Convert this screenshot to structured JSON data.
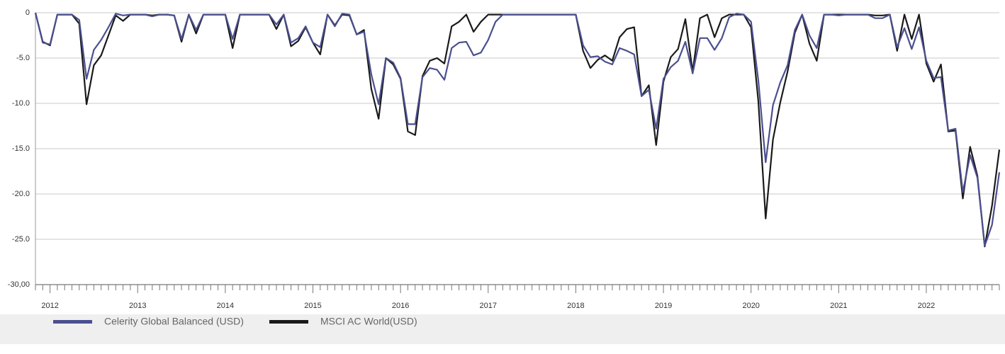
{
  "chart_data": {
    "type": "line",
    "categories": [
      null,
      null,
      "2012",
      null,
      null,
      null,
      null,
      null,
      null,
      null,
      null,
      null,
      null,
      null,
      "2013",
      null,
      null,
      null,
      null,
      null,
      null,
      null,
      null,
      null,
      null,
      null,
      "2014",
      null,
      null,
      null,
      null,
      null,
      null,
      null,
      null,
      null,
      null,
      null,
      "2015",
      null,
      null,
      null,
      null,
      null,
      null,
      null,
      null,
      null,
      null,
      null,
      "2016",
      null,
      null,
      null,
      null,
      null,
      null,
      null,
      null,
      null,
      null,
      null,
      "2017",
      null,
      null,
      null,
      null,
      null,
      null,
      null,
      null,
      null,
      null,
      null,
      "2018",
      null,
      null,
      null,
      null,
      null,
      null,
      null,
      null,
      null,
      null,
      null,
      "2019",
      null,
      null,
      null,
      null,
      null,
      null,
      null,
      null,
      null,
      null,
      null,
      "2020",
      null,
      null,
      null,
      null,
      null,
      null,
      null,
      null,
      null,
      null,
      null,
      "2021",
      null,
      null,
      null,
      null,
      null,
      null,
      null,
      null,
      null,
      null,
      null,
      "2022",
      null,
      null,
      null,
      null,
      null,
      null,
      null,
      null,
      null,
      null
    ],
    "series": [
      {
        "name": "Celerity Global Balanced (USD)",
        "color": "#4a4f8f",
        "values": [
          0,
          -3.3,
          -3.5,
          -0.2,
          -0.2,
          -0.2,
          -0.8,
          -7.3,
          -4.1,
          -3.0,
          -1.6,
          -0.1,
          -0.3,
          -0.2,
          -0.2,
          -0.2,
          -0.4,
          -0.2,
          -0.2,
          -0.3,
          -2.9,
          -0.2,
          -1.9,
          -0.2,
          -0.2,
          -0.2,
          -0.2,
          -2.9,
          -0.2,
          -0.2,
          -0.2,
          -0.2,
          -0.2,
          -1.3,
          -0.2,
          -3.3,
          -2.8,
          -1.5,
          -3.3,
          -3.8,
          -0.2,
          -1.5,
          -0.1,
          -0.2,
          -2.4,
          -2.1,
          -6.8,
          -10.1,
          -5.0,
          -5.5,
          -7.2,
          -12.3,
          -12.3,
          -7.1,
          -6.1,
          -6.3,
          -7.4,
          -3.9,
          -3.3,
          -3.2,
          -4.7,
          -4.4,
          -3.0,
          -1.0,
          -0.2,
          -0.2,
          -0.2,
          -0.2,
          -0.2,
          -0.2,
          -0.2,
          -0.2,
          -0.2,
          -0.2,
          -0.2,
          -3.6,
          -4.9,
          -4.8,
          -5.4,
          -5.7,
          -3.9,
          -4.2,
          -4.6,
          -9.2,
          -8.5,
          -12.8,
          -7.3,
          -6.0,
          -5.3,
          -3.2,
          -6.7,
          -2.8,
          -2.8,
          -4.1,
          -2.8,
          -0.5,
          -0.1,
          -0.2,
          -1.0,
          -7.5,
          -16.5,
          -10.2,
          -7.7,
          -5.8,
          -1.9,
          -0.2,
          -2.5,
          -3.9,
          -0.2,
          -0.2,
          -0.3,
          -0.2,
          -0.2,
          -0.2,
          -0.2,
          -0.6,
          -0.6,
          -0.2,
          -3.8,
          -1.7,
          -4.0,
          -1.6,
          -5.3,
          -7.2,
          -7.1,
          -13.0,
          -12.8,
          -19.8,
          -15.7,
          -18.2,
          -25.7,
          -23.4,
          -17.6
        ]
      },
      {
        "name": "MSCI AC World(USD)",
        "color": "#1a1a1a",
        "values": [
          0,
          -3.2,
          -3.6,
          -0.2,
          -0.2,
          -0.2,
          -1.2,
          -10.1,
          -5.8,
          -4.7,
          -2.5,
          -0.3,
          -0.9,
          -0.2,
          -0.2,
          -0.2,
          -0.3,
          -0.2,
          -0.2,
          -0.3,
          -3.2,
          -0.2,
          -2.3,
          -0.2,
          -0.2,
          -0.2,
          -0.2,
          -3.9,
          -0.2,
          -0.2,
          -0.2,
          -0.2,
          -0.2,
          -1.8,
          -0.2,
          -3.7,
          -3.1,
          -1.6,
          -3.3,
          -4.6,
          -0.2,
          -1.4,
          -0.2,
          -0.3,
          -2.4,
          -1.9,
          -8.4,
          -11.7,
          -5.0,
          -5.7,
          -7.3,
          -13.1,
          -13.5,
          -7.0,
          -5.3,
          -5.0,
          -5.6,
          -1.5,
          -1.0,
          -0.2,
          -2.1,
          -1.0,
          -0.2,
          -0.2,
          -0.2,
          -0.2,
          -0.2,
          -0.2,
          -0.2,
          -0.2,
          -0.2,
          -0.2,
          -0.2,
          -0.2,
          -0.2,
          -4.2,
          -6.1,
          -5.2,
          -4.7,
          -5.3,
          -2.7,
          -1.8,
          -1.6,
          -9.2,
          -8.0,
          -14.6,
          -7.6,
          -4.9,
          -4.0,
          -0.7,
          -6.5,
          -0.6,
          -0.2,
          -2.7,
          -0.6,
          -0.2,
          -0.2,
          -0.2,
          -1.6,
          -9.8,
          -22.7,
          -14.0,
          -9.9,
          -6.5,
          -2.2,
          -0.2,
          -3.4,
          -5.3,
          -0.2,
          -0.2,
          -0.2,
          -0.2,
          -0.2,
          -0.2,
          -0.2,
          -0.3,
          -0.3,
          -0.2,
          -4.2,
          -0.2,
          -2.9,
          -0.2,
          -5.6,
          -7.6,
          -5.7,
          -13.1,
          -13.0,
          -20.5,
          -14.8,
          -18.0,
          -25.8,
          -21.3,
          -15.1
        ]
      }
    ],
    "ylim": [
      -30,
      0
    ],
    "yticks": [
      {
        "value": -30,
        "label": "-30,00"
      },
      {
        "value": -25,
        "label": "-25.0"
      },
      {
        "value": -20,
        "label": "-20.0"
      },
      {
        "value": -15,
        "label": "-15.0"
      },
      {
        "value": -10,
        "label": "-10.0"
      },
      {
        "value": -5,
        "label": "-5.0"
      },
      0
    ],
    "grid": true,
    "legend": "bottom"
  }
}
